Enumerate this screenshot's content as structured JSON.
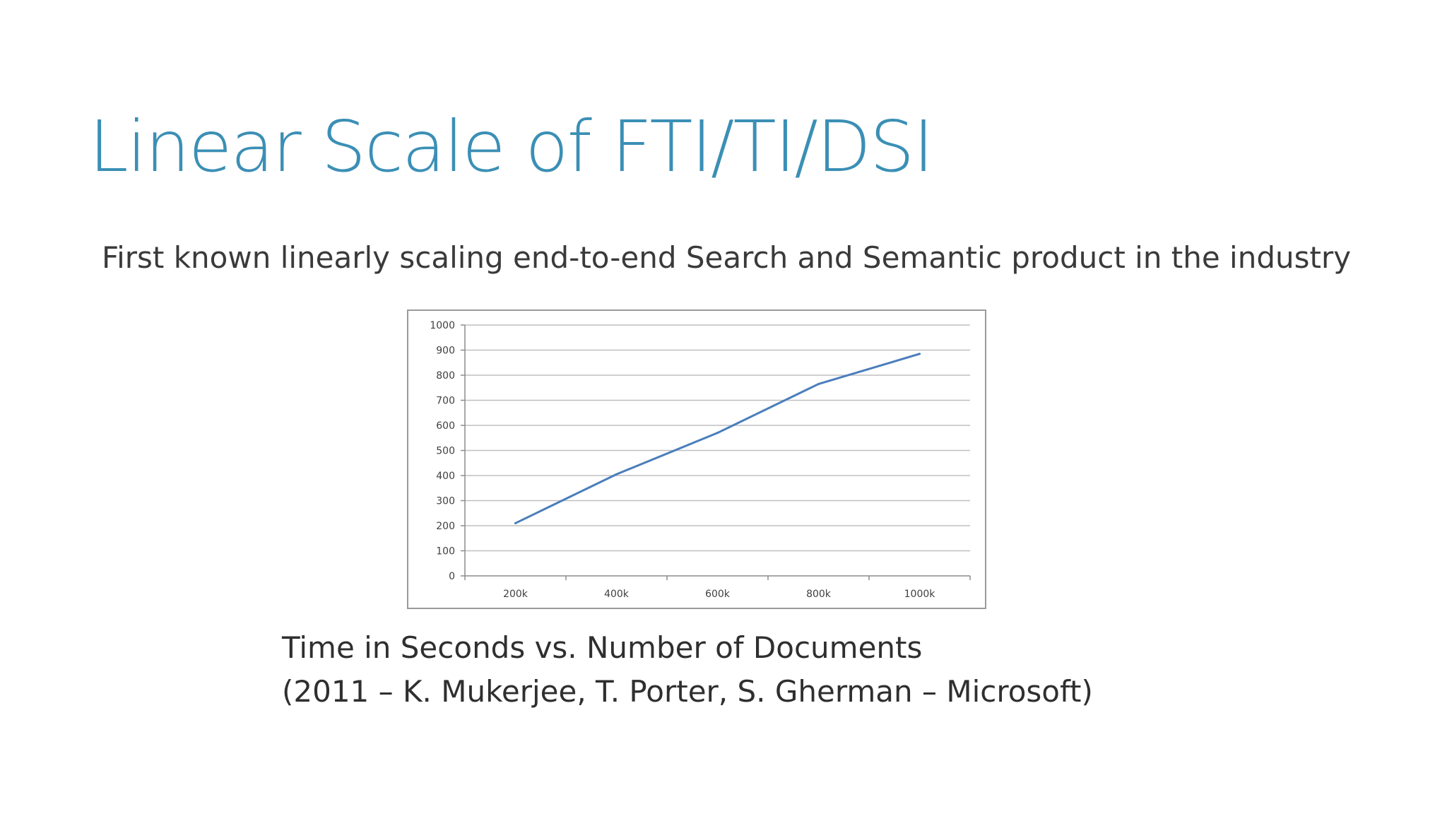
{
  "slide": {
    "title": "Linear Scale of FTI/TI/DSI",
    "subtitle": "First known linearly scaling end-to-end Search and Semantic product in the industry",
    "caption_line1": "Time in Seconds vs. Number of Documents",
    "caption_line2": "(2011 – K. Mukerjee, T. Porter, S. Gherman – Microsoft)"
  },
  "colors": {
    "title": "#3b8fb5",
    "series_line": "#4a7ebb",
    "gridline": "#bfbfbf"
  },
  "chart_data": {
    "type": "line",
    "categories": [
      "200k",
      "400k",
      "600k",
      "800k",
      "1000k"
    ],
    "series": [
      {
        "values": [
          210,
          405,
          570,
          765,
          885
        ]
      }
    ],
    "ylim": [
      0,
      1000
    ],
    "yticks": [
      0,
      100,
      200,
      300,
      400,
      500,
      600,
      700,
      800,
      900,
      1000
    ],
    "grid": true,
    "legend": "none"
  }
}
